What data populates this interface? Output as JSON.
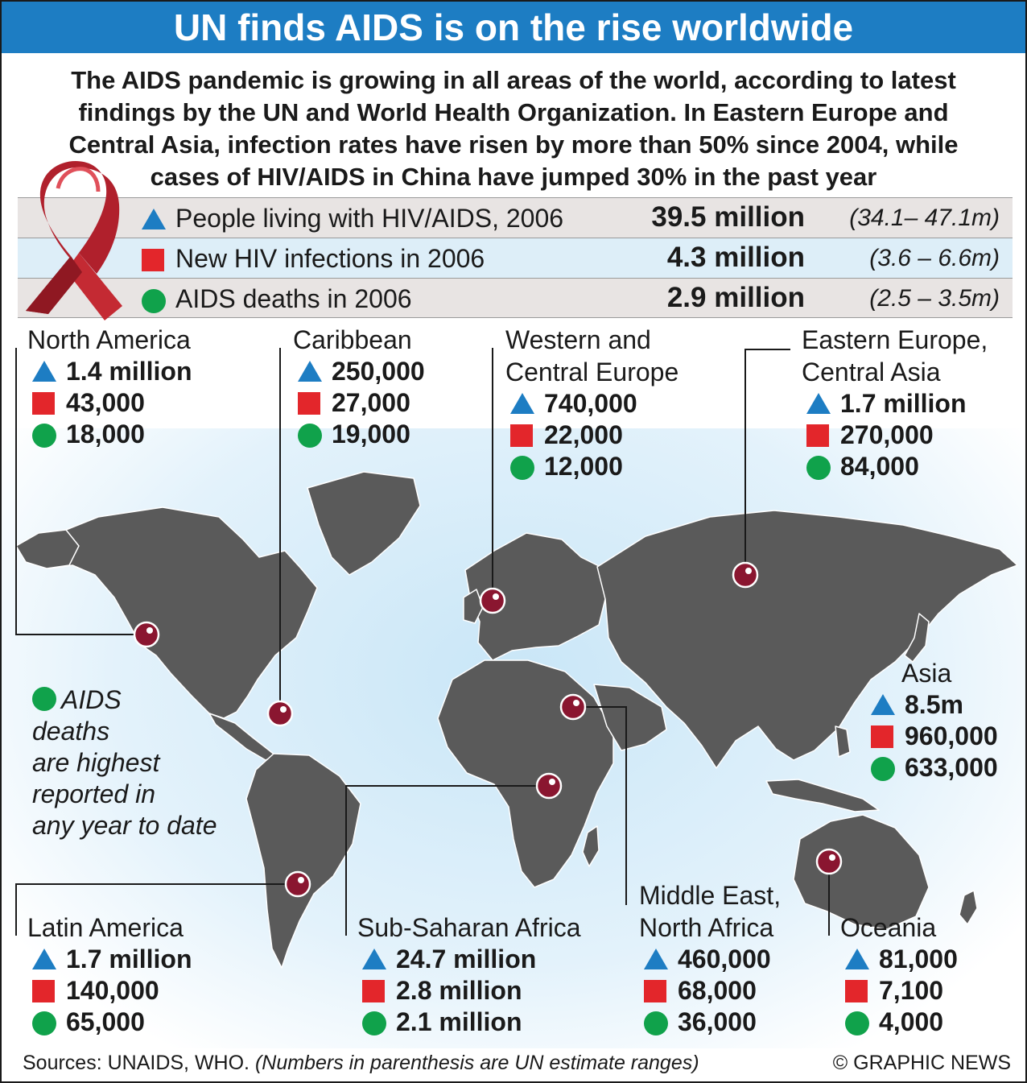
{
  "title": "UN finds AIDS is on the rise worldwide",
  "intro": [
    "The AIDS pandemic is growing in all areas of the world, according to latest",
    "findings by the UN and World Health Organization. In Eastern Europe and",
    "Central Asia, infection rates have risen by more than 50% since 2004, while",
    "cases of HIV/AIDS in China have jumped 30% in the past year"
  ],
  "colors": {
    "title_bar": "#1d7dc3",
    "living": "#1d7dc3",
    "new": "#e3262b",
    "deaths": "#10a24b",
    "land": "#5a5a5a",
    "marker": "#8a1630"
  },
  "global_stats": [
    {
      "icon": "triangle-icon",
      "label": "People living with HIV/AIDS, 2006",
      "value": "39.5 million",
      "range": "(34.1– 47.1m)"
    },
    {
      "icon": "square-icon",
      "label": "New HIV infections in 2006",
      "value": "4.3 million",
      "range": "(3.6 – 6.6m)"
    },
    {
      "icon": "circle-icon",
      "label": "AIDS deaths in 2006",
      "value": "2.9 million",
      "range": "(2.5 – 3.5m)"
    }
  ],
  "regions": {
    "north_america": {
      "name": [
        "North America"
      ],
      "living": "1.4 million",
      "new": "43,000",
      "deaths": "18,000"
    },
    "caribbean": {
      "name": [
        "Caribbean"
      ],
      "living": "250,000",
      "new": "27,000",
      "deaths": "19,000"
    },
    "western_central_europe": {
      "name": [
        "Western and",
        "Central Europe"
      ],
      "living": "740,000",
      "new": "22,000",
      "deaths": "12,000"
    },
    "eastern_europe_central_asia": {
      "name": [
        "Eastern Europe,",
        "Central Asia"
      ],
      "living": "1.7 million",
      "new": "270,000",
      "deaths": "84,000"
    },
    "asia": {
      "name": [
        "Asia"
      ],
      "living": "8.5m",
      "new": "960,000",
      "deaths": "633,000"
    },
    "latin_america": {
      "name": [
        "Latin America"
      ],
      "living": "1.7 million",
      "new": "140,000",
      "deaths": "65,000"
    },
    "sub_saharan_africa": {
      "name": [
        "Sub-Saharan Africa"
      ],
      "living": "24.7 million",
      "new": "2.8 million",
      "deaths": "2.1 million"
    },
    "middle_east_north_africa": {
      "name": [
        "Middle East,",
        "North Africa"
      ],
      "living": "460,000",
      "new": "68,000",
      "deaths": "36,000"
    },
    "oceania": {
      "name": [
        "Oceania"
      ],
      "living": "81,000",
      "new": "7,100",
      "deaths": "4,000"
    }
  },
  "note": [
    "AIDS",
    "deaths",
    "are highest",
    "reported in",
    "any year to date"
  ],
  "footer": {
    "sources": "Sources: UNAIDS, WHO.",
    "sources_note": "(Numbers in parenthesis are UN estimate ranges)",
    "copyright": "© GRAPHIC NEWS"
  }
}
